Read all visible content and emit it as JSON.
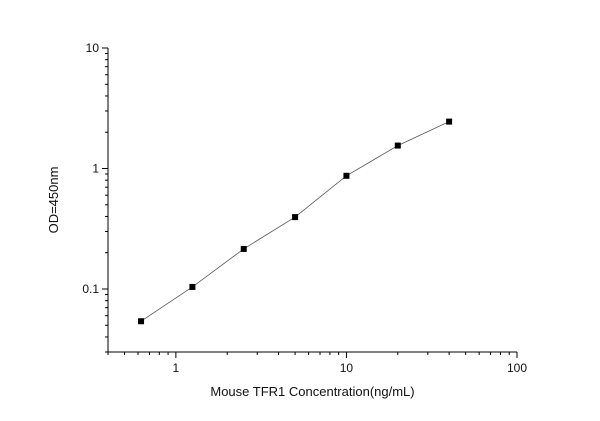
{
  "chart_data": {
    "type": "scatter",
    "title": "",
    "xlabel": "Mouse TFR1 Concentration(ng/mL)",
    "ylabel": "OD=450nm",
    "xscale": "log",
    "yscale": "log",
    "xlim": [
      0.4,
      100
    ],
    "ylim": [
      0.03,
      10
    ],
    "x_ticks": [
      1,
      10,
      100
    ],
    "x_tick_labels": [
      "1",
      "10",
      "100"
    ],
    "y_ticks": [
      0.1,
      1,
      10
    ],
    "y_tick_labels": [
      "0.1",
      "1",
      "10"
    ],
    "grid": false,
    "legend": "none",
    "marker": "square",
    "connected": true,
    "series": [
      {
        "x": [
          0.625,
          1.25,
          2.5,
          5,
          10,
          20,
          40
        ],
        "y": [
          0.054,
          0.104,
          0.215,
          0.395,
          0.87,
          1.55,
          2.45
        ]
      }
    ],
    "colors": {
      "marker": "#000000",
      "line": "#555555",
      "axes": "#000000"
    }
  }
}
